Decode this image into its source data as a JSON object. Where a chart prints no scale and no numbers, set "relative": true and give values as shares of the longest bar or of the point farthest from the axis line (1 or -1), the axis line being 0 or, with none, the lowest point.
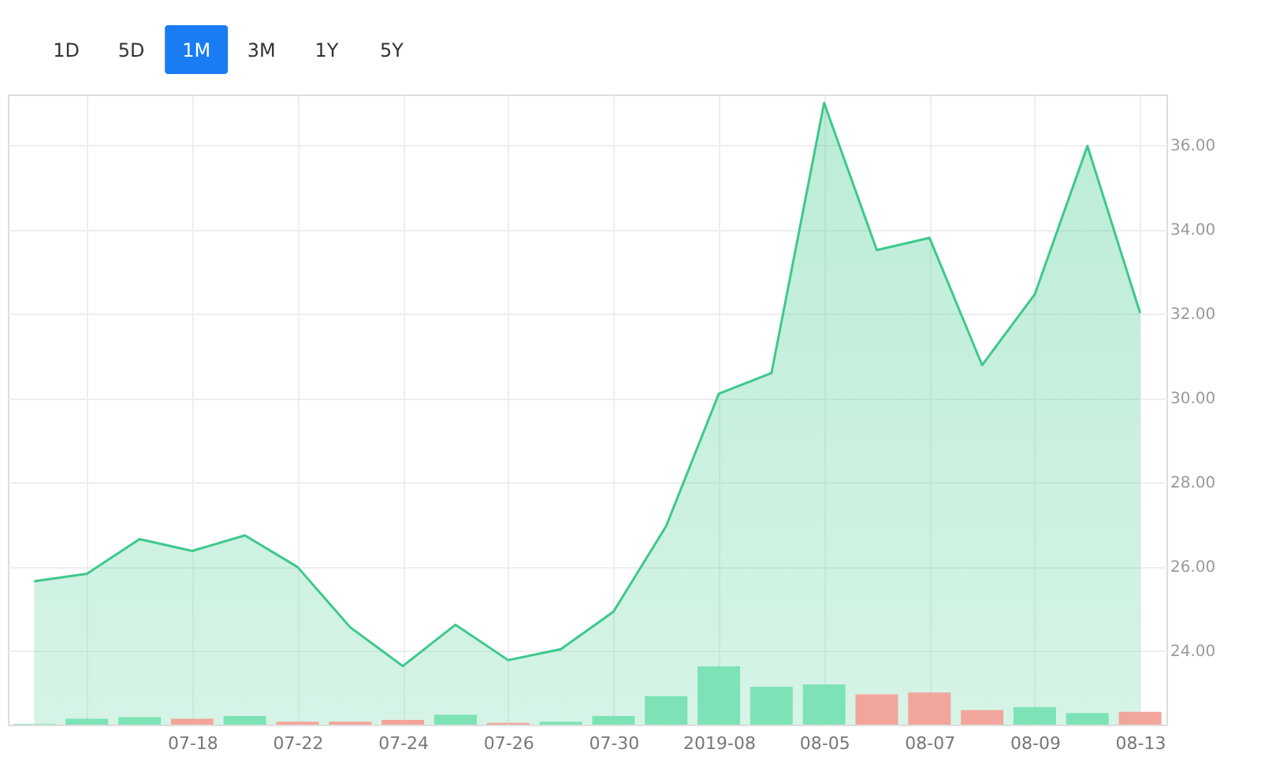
{
  "chart_data": [
    {
      "type": "area",
      "annotations": [
        "1D",
        "5D",
        "1M",
        "3M",
        "1Y",
        "5Y"
      ],
      "categories": [
        null,
        null,
        null,
        null,
        null,
        null,
        null,
        null,
        null,
        null,
        null,
        null,
        null,
        null,
        null,
        null,
        null,
        null,
        null,
        null,
        null,
        null
      ],
      "series": [
        {
          "color": "#3cc98a",
          "values": [
            25.65,
            25.83,
            26.65,
            26.37,
            26.74,
            25.99,
            24.56,
            23.64,
            24.62,
            23.78,
            24.04,
            24.93,
            26.96,
            30.1,
            30.59,
            37.0,
            33.51,
            33.8,
            30.78,
            32.46,
            35.98,
            32.02
          ]
        }
      ],
      "ylim": [
        22.25,
        37.2
      ],
      "yticks": [
        {
          "value": 24,
          "label": "24.00"
        },
        {
          "value": 26,
          "label": "26.00"
        },
        {
          "value": 28,
          "label": "28.00"
        },
        {
          "value": 30,
          "label": "30.00"
        },
        {
          "value": 32,
          "label": "32.00"
        },
        {
          "value": 34,
          "label": "34.00"
        },
        {
          "value": 36,
          "label": "36.00"
        }
      ],
      "grid": true,
      "tick_labels": "y"
    },
    {
      "type": "bar",
      "relative": true,
      "categories": [
        null,
        null,
        null,
        "07-18",
        null,
        "07-22",
        null,
        "07-24",
        null,
        "07-26",
        null,
        "07-30",
        null,
        "2019-08",
        null,
        "08-05",
        null,
        "08-07",
        null,
        "08-09",
        null,
        "08-13"
      ],
      "colors": [
        "#7de3b6",
        "#7de3b6",
        "#7de3b6",
        "#f2a59b",
        "#7de3b6",
        "#f2a59b",
        "#f2a59b",
        "#f2a59b",
        "#7de3b6",
        "#f2a59b",
        "#7de3b6",
        "#7de3b6",
        "#7de3b6",
        "#7de3b6",
        "#7de3b6",
        "#7de3b6",
        "#f2a59b",
        "#f2a59b",
        "#f2a59b",
        "#7de3b6",
        "#7de3b6",
        "#f2a59b"
      ],
      "values": [
        0.01,
        0.1,
        0.13,
        0.1,
        0.15,
        0.05,
        0.05,
        0.08,
        0.17,
        0.03,
        0.05,
        0.15,
        0.49,
        1.0,
        0.65,
        0.69,
        0.52,
        0.55,
        0.25,
        0.3,
        0.2,
        0.22
      ],
      "tick_labels": "x"
    }
  ]
}
